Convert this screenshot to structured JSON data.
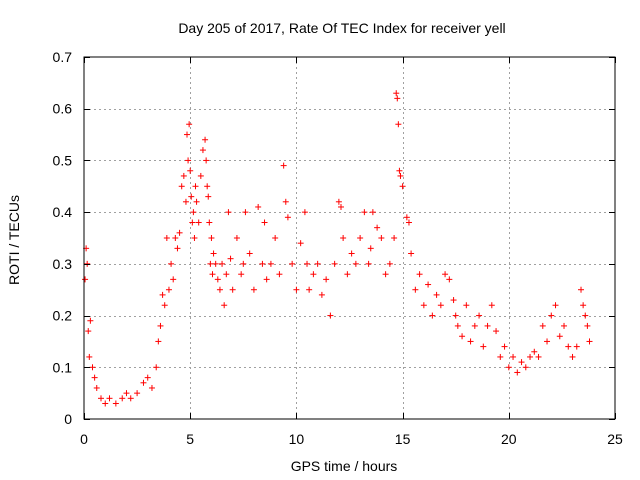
{
  "chart_data": {
    "type": "scatter",
    "title": "Day 205 of 2017, Rate Of TEC Index for receiver yell",
    "xlabel": "GPS time / hours",
    "ylabel": "ROTI / TECUs",
    "xlim": [
      0,
      25
    ],
    "ylim": [
      0,
      0.7
    ],
    "xticks": [
      "0",
      "5",
      "10",
      "15",
      "20",
      "25"
    ],
    "yticks": [
      "0",
      "0.1",
      "0.2",
      "0.3",
      "0.4",
      "0.5",
      "0.6",
      "0.7"
    ],
    "grid": true,
    "marker": "+",
    "color": "#ff0000",
    "x": [
      0.05,
      0.1,
      0.15,
      0.2,
      0.25,
      0.3,
      0.4,
      0.5,
      0.6,
      0.8,
      1.0,
      1.2,
      1.5,
      1.8,
      2.0,
      2.2,
      2.5,
      2.8,
      3.0,
      3.2,
      3.4,
      3.5,
      3.6,
      3.7,
      3.8,
      3.9,
      4.0,
      4.1,
      4.2,
      4.3,
      4.4,
      4.5,
      4.6,
      4.7,
      4.8,
      4.85,
      4.9,
      4.95,
      5.0,
      5.05,
      5.1,
      5.15,
      5.2,
      5.25,
      5.3,
      5.4,
      5.5,
      5.6,
      5.7,
      5.75,
      5.8,
      5.85,
      5.9,
      5.95,
      6.0,
      6.05,
      6.1,
      6.2,
      6.3,
      6.4,
      6.5,
      6.6,
      6.7,
      6.8,
      6.9,
      7.0,
      7.2,
      7.4,
      7.5,
      7.6,
      7.8,
      8.0,
      8.2,
      8.4,
      8.5,
      8.6,
      8.8,
      9.0,
      9.2,
      9.4,
      9.5,
      9.6,
      9.8,
      10.0,
      10.2,
      10.4,
      10.5,
      10.6,
      10.8,
      11.0,
      11.2,
      11.4,
      11.6,
      11.8,
      12.0,
      12.1,
      12.2,
      12.4,
      12.6,
      12.8,
      13.0,
      13.2,
      13.4,
      13.5,
      13.6,
      13.8,
      14.0,
      14.2,
      14.4,
      14.6,
      14.7,
      14.75,
      14.8,
      14.85,
      14.9,
      15.0,
      15.2,
      15.3,
      15.4,
      15.6,
      15.8,
      16.0,
      16.2,
      16.4,
      16.6,
      16.8,
      17.0,
      17.2,
      17.4,
      17.5,
      17.6,
      17.8,
      18.0,
      18.2,
      18.4,
      18.6,
      18.8,
      19.0,
      19.2,
      19.4,
      19.6,
      19.8,
      20.0,
      20.2,
      20.4,
      20.6,
      20.8,
      21.0,
      21.2,
      21.4,
      21.6,
      21.8,
      22.0,
      22.2,
      22.4,
      22.6,
      22.8,
      23.0,
      23.2,
      23.4,
      23.5,
      23.6,
      23.7,
      23.8
    ],
    "y": [
      0.27,
      0.33,
      0.3,
      0.17,
      0.12,
      0.19,
      0.1,
      0.08,
      0.06,
      0.04,
      0.03,
      0.04,
      0.03,
      0.04,
      0.05,
      0.04,
      0.05,
      0.07,
      0.08,
      0.06,
      0.1,
      0.15,
      0.18,
      0.24,
      0.22,
      0.35,
      0.25,
      0.3,
      0.27,
      0.35,
      0.33,
      0.36,
      0.45,
      0.47,
      0.42,
      0.55,
      0.5,
      0.57,
      0.48,
      0.43,
      0.38,
      0.4,
      0.35,
      0.45,
      0.42,
      0.38,
      0.47,
      0.52,
      0.54,
      0.5,
      0.45,
      0.43,
      0.38,
      0.3,
      0.35,
      0.28,
      0.32,
      0.3,
      0.27,
      0.25,
      0.3,
      0.22,
      0.28,
      0.4,
      0.31,
      0.25,
      0.35,
      0.28,
      0.3,
      0.4,
      0.32,
      0.25,
      0.41,
      0.3,
      0.38,
      0.27,
      0.3,
      0.35,
      0.28,
      0.49,
      0.42,
      0.39,
      0.3,
      0.25,
      0.34,
      0.4,
      0.3,
      0.25,
      0.28,
      0.3,
      0.24,
      0.27,
      0.2,
      0.3,
      0.42,
      0.41,
      0.35,
      0.28,
      0.32,
      0.3,
      0.35,
      0.4,
      0.3,
      0.33,
      0.4,
      0.37,
      0.35,
      0.28,
      0.3,
      0.35,
      0.63,
      0.62,
      0.57,
      0.48,
      0.47,
      0.45,
      0.39,
      0.38,
      0.32,
      0.25,
      0.28,
      0.22,
      0.26,
      0.2,
      0.24,
      0.22,
      0.28,
      0.27,
      0.23,
      0.2,
      0.18,
      0.16,
      0.22,
      0.15,
      0.18,
      0.2,
      0.14,
      0.18,
      0.22,
      0.17,
      0.12,
      0.14,
      0.1,
      0.12,
      0.09,
      0.11,
      0.1,
      0.12,
      0.13,
      0.12,
      0.18,
      0.15,
      0.2,
      0.22,
      0.16,
      0.18,
      0.14,
      0.12,
      0.14,
      0.25,
      0.22,
      0.2,
      0.18,
      0.15
    ]
  }
}
